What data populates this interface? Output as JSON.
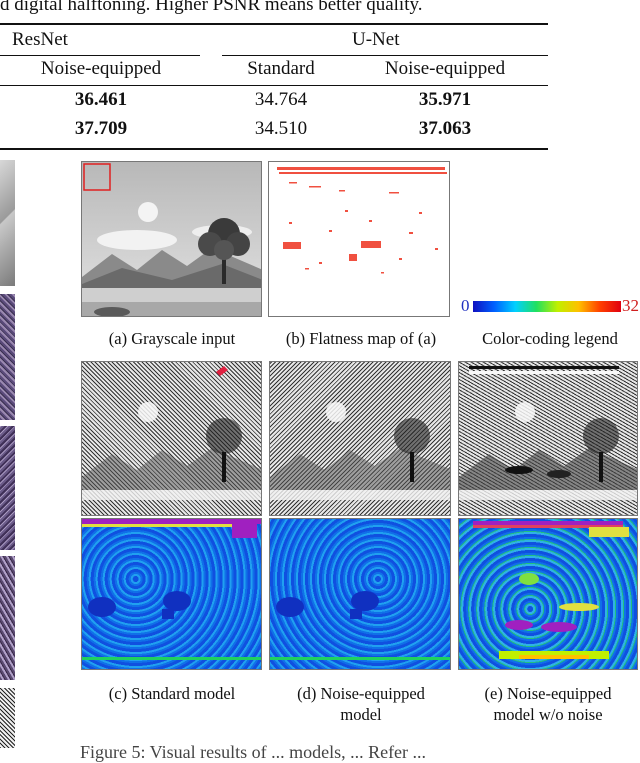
{
  "top_caption": "d digital halftoning. Higher PSNR means better quality.",
  "table": {
    "group_headers": [
      "ResNet",
      "U-Net"
    ],
    "column_headers": [
      "Noise-equipped",
      "Standard",
      "Noise-equipped"
    ],
    "rows": [
      [
        "36.461",
        "34.764",
        "35.971"
      ],
      [
        "37.709",
        "34.510",
        "37.063"
      ]
    ],
    "bold_columns": [
      0,
      2
    ]
  },
  "legend": {
    "min": "0",
    "max": "32",
    "colors": [
      "#1010c0",
      "#0060ff",
      "#00d0ff",
      "#20e060",
      "#c0f000",
      "#ffc000",
      "#ff4000",
      "#e00010"
    ]
  },
  "panels": {
    "a": "(a) Grayscale input",
    "b": "(b) Flatness map of (a)",
    "legend": "Color-coding legend",
    "c": "(c) Standard model",
    "d_line1": "(d) Noise-equipped",
    "d_line2": "model",
    "e_line1": "(e) Noise-equipped",
    "e_line2": "model w/o noise"
  },
  "bottom_caption": "Figure 5: Visual results of ... models, ... Refer ..."
}
